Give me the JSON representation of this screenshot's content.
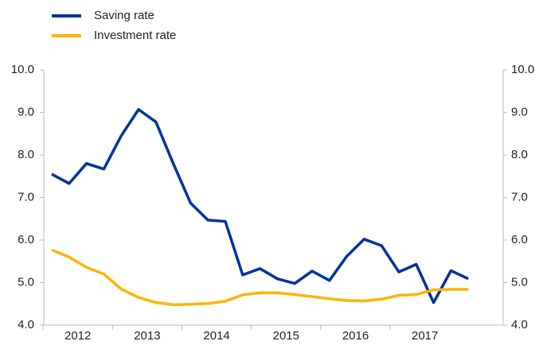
{
  "chart_data": {
    "type": "line",
    "categories": [
      "2012",
      null,
      null,
      null,
      "2013",
      null,
      null,
      null,
      "2014",
      null,
      null,
      null,
      "2015",
      null,
      null,
      null,
      "2016",
      null,
      null,
      null,
      "2017",
      null,
      null,
      null,
      null
    ],
    "series": [
      {
        "name": "Saving rate",
        "color": "#003399",
        "values": [
          7.55,
          7.33,
          7.8,
          7.67,
          8.45,
          9.07,
          8.78,
          7.8,
          6.87,
          6.47,
          6.44,
          5.18,
          5.33,
          5.09,
          4.98,
          5.27,
          5.05,
          5.62,
          6.02,
          5.87,
          5.25,
          5.43,
          4.53,
          5.28,
          5.09
        ]
      },
      {
        "name": "Investment rate",
        "color": "#ffb400",
        "values": [
          5.77,
          5.6,
          5.36,
          5.2,
          4.85,
          4.65,
          4.53,
          4.48,
          4.49,
          4.51,
          4.56,
          4.71,
          4.76,
          4.76,
          4.72,
          4.67,
          4.62,
          4.58,
          4.57,
          4.61,
          4.7,
          4.72,
          4.83,
          4.84,
          4.84
        ]
      }
    ],
    "ylim": [
      4.0,
      10.0
    ],
    "yticks": [
      {
        "value": 4,
        "label": "4.0"
      },
      {
        "value": 5,
        "label": "5.0"
      },
      {
        "value": 6,
        "label": "6.0"
      },
      {
        "value": 7,
        "label": "7.0"
      },
      {
        "value": 8,
        "label": "8.0"
      },
      {
        "value": 9,
        "label": "9.0"
      },
      {
        "value": 10,
        "label": "10.0"
      }
    ],
    "y2lim": [
      4.0,
      10.0
    ],
    "y2ticks": [
      {
        "value": 4,
        "label": "4.0"
      },
      {
        "value": 5,
        "label": "5.0"
      },
      {
        "value": 6,
        "label": "6.0"
      },
      {
        "value": 7,
        "label": "7.0"
      },
      {
        "value": 8,
        "label": "8.0"
      },
      {
        "value": 9,
        "label": "9.0"
      },
      {
        "value": 10,
        "label": "10.0"
      }
    ],
    "grid": false,
    "legend": "top-left"
  }
}
